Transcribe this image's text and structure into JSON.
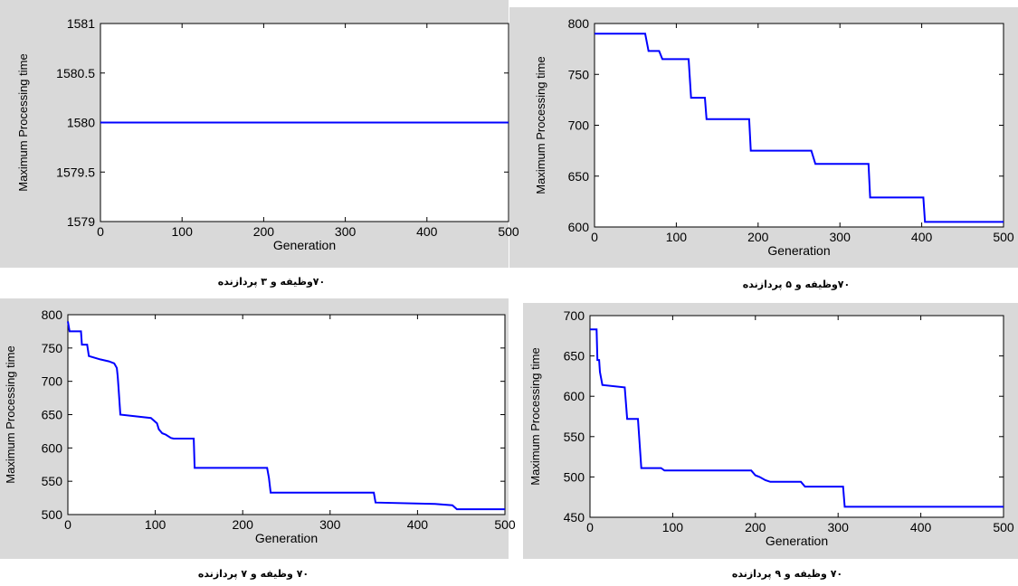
{
  "figure": {
    "background": "#d9d9d9",
    "plot_background": "#ffffff",
    "line_color": "#0000ff"
  },
  "chart_data": [
    {
      "type": "line",
      "caption": "۷۰وظیفه و ۳ پردازنده",
      "xlabel": "Generation",
      "ylabel": "Maximum Processing time",
      "xlim": [
        0,
        500
      ],
      "ylim": [
        1579,
        1581
      ],
      "xticks": [
        "0",
        "100",
        "200",
        "300",
        "400",
        "500"
      ],
      "yticks": [
        "1579",
        "1579.5",
        "1580",
        "1580.5",
        "1581"
      ],
      "series": [
        {
          "x": [
            0,
            500
          ],
          "y": [
            1580,
            1580
          ]
        }
      ]
    },
    {
      "type": "line",
      "caption": "۷۰وظیفه و ۵ پردازنده",
      "xlabel": "Generation",
      "ylabel": "Maximum Processing time",
      "xlim": [
        0,
        500
      ],
      "ylim": [
        600,
        800
      ],
      "xticks": [
        "0",
        "100",
        "200",
        "300",
        "400",
        "500"
      ],
      "yticks": [
        "600",
        "650",
        "700",
        "750",
        "800"
      ],
      "series": [
        {
          "x": [
            0,
            62,
            66,
            79,
            83,
            115,
            118,
            135,
            137,
            189,
            191,
            265,
            270,
            335,
            337,
            402,
            404,
            500
          ],
          "y": [
            790,
            790,
            773,
            773,
            765,
            765,
            727,
            727,
            706,
            706,
            675,
            675,
            662,
            662,
            629,
            629,
            605,
            605
          ]
        }
      ]
    },
    {
      "type": "line",
      "caption": "۷۰ وظیفه و ۷ پردازنده",
      "xlabel": "Generation",
      "ylabel": "Maximum Processing time",
      "xlim": [
        0,
        500
      ],
      "ylim": [
        500,
        800
      ],
      "xticks": [
        "0",
        "100",
        "200",
        "300",
        "400",
        "500"
      ],
      "yticks": [
        "500",
        "550",
        "600",
        "650",
        "700",
        "750",
        "800"
      ],
      "series": [
        {
          "x": [
            0,
            2,
            15,
            16,
            22,
            24,
            37,
            47,
            53,
            56,
            57,
            58,
            60,
            95,
            102,
            104,
            108,
            112,
            118,
            121,
            144,
            145,
            228,
            230,
            232,
            350,
            352,
            420,
            440,
            445,
            500
          ],
          "y": [
            790,
            775,
            775,
            755,
            755,
            738,
            733,
            730,
            727,
            720,
            707,
            690,
            650,
            645,
            637,
            628,
            622,
            620,
            615,
            614,
            614,
            570,
            570,
            555,
            533,
            533,
            518,
            516,
            514,
            508,
            508
          ]
        }
      ]
    },
    {
      "type": "line",
      "caption": "۷۰ وظیفه و ۹ پردازنده",
      "xlabel": "Generation",
      "ylabel": "Maximum Processing time",
      "xlim": [
        0,
        500
      ],
      "ylim": [
        450,
        700
      ],
      "xticks": [
        "0",
        "100",
        "200",
        "300",
        "400",
        "500"
      ],
      "yticks": [
        "450",
        "500",
        "550",
        "600",
        "650",
        "700"
      ],
      "series": [
        {
          "x": [
            0,
            8,
            9,
            11,
            12,
            15,
            42,
            45,
            58,
            62,
            86,
            90,
            195,
            200,
            205,
            212,
            218,
            255,
            260,
            306,
            308,
            500
          ],
          "y": [
            683,
            683,
            645,
            645,
            630,
            614,
            611,
            572,
            572,
            511,
            511,
            508,
            508,
            502,
            500,
            496,
            494,
            494,
            488,
            488,
            463,
            463
          ]
        }
      ]
    }
  ]
}
